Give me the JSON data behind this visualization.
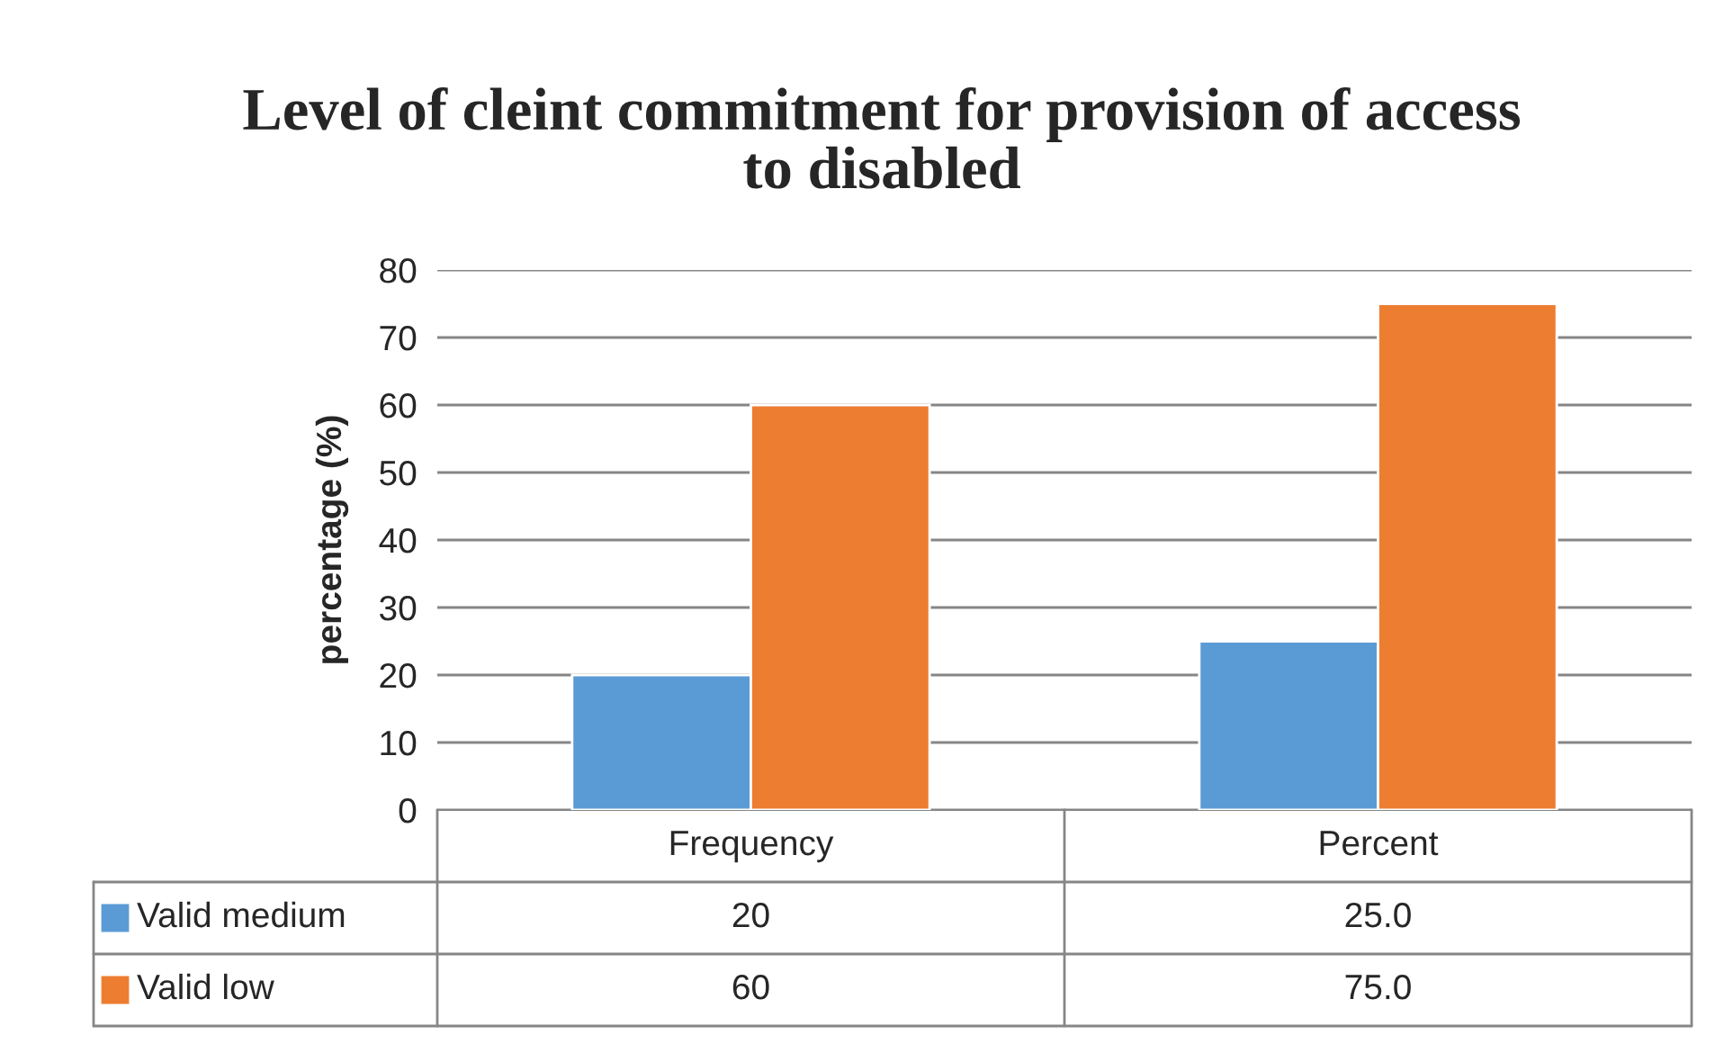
{
  "chart_data": {
    "type": "bar",
    "title": "Level of cleint commitment for provision of access to disabled",
    "ylabel": "percentage (%)",
    "categories": [
      "Frequency",
      "Percent"
    ],
    "series": [
      {
        "name": "Valid medium",
        "color": "#5b9bd5",
        "values": [
          20,
          25
        ],
        "value_labels": [
          "20",
          "25.0"
        ]
      },
      {
        "name": "Valid low",
        "color": "#ed7d31",
        "values": [
          60,
          75
        ],
        "value_labels": [
          "60",
          "75.0"
        ]
      }
    ],
    "ylim": [
      0,
      80
    ],
    "yticks": [
      0,
      10,
      20,
      30,
      40,
      50,
      60,
      70,
      80
    ],
    "grid": "y",
    "legend": "bottom"
  }
}
